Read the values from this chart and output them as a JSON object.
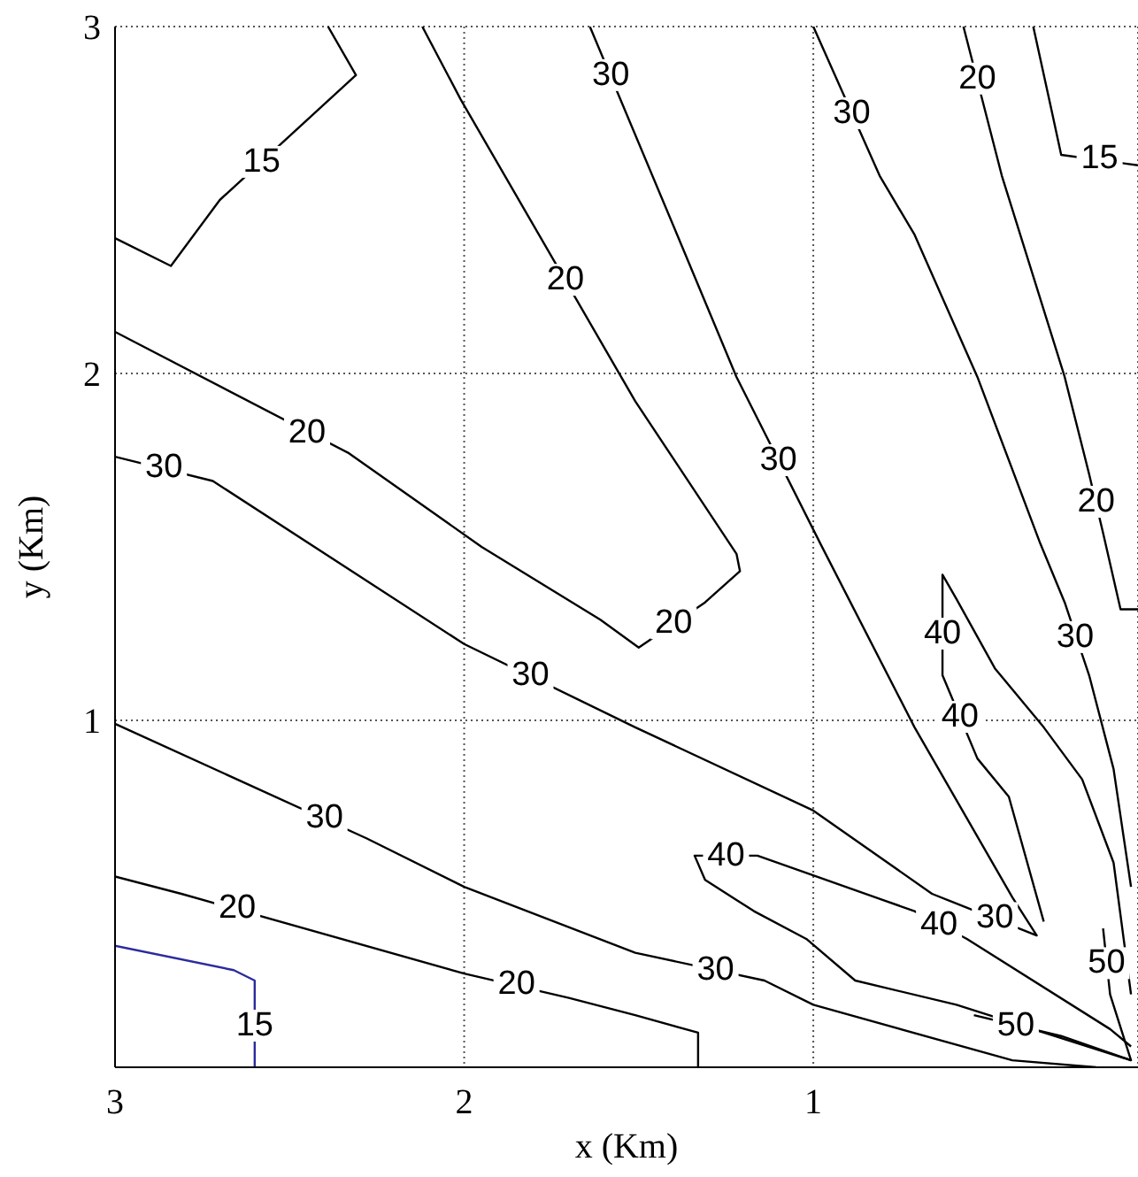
{
  "chart_data": {
    "type": "line",
    "xlabel": "x (Km)",
    "ylabel": "y (Km)",
    "xlim": [
      3,
      0.07
    ],
    "ylim": [
      0,
      3
    ],
    "xticks": [
      3,
      2,
      1
    ],
    "yticks": [
      1,
      2,
      3
    ],
    "grid": true,
    "marker": "none",
    "line_style": "solid",
    "series": [
      {
        "color": "#000000",
        "x": [
          2.39,
          2.31,
          2.7,
          2.84,
          3.0
        ],
        "values": [
          3.0,
          2.86,
          2.5,
          2.31,
          2.39
        ]
      },
      {
        "color": "#000000",
        "x": [
          3.0,
          2.33,
          1.95,
          1.61,
          1.5,
          1.31,
          1.21,
          1.22,
          1.51,
          2.01,
          2.12
        ],
        "values": [
          2.12,
          1.77,
          1.5,
          1.29,
          1.21,
          1.34,
          1.43,
          1.48,
          1.92,
          2.79,
          3.0
        ]
      },
      {
        "color": "#000000",
        "x": [
          3.0,
          2.72,
          2.0,
          1.51,
          1.0,
          0.66,
          0.36,
          0.43,
          0.71,
          0.98,
          1.22,
          1.39,
          1.64
        ],
        "values": [
          1.76,
          1.69,
          1.22,
          0.98,
          0.74,
          0.5,
          0.38,
          0.49,
          0.98,
          1.51,
          1.99,
          2.4,
          3.0
        ]
      },
      {
        "color": "#000000",
        "x": [
          3.0,
          2.28,
          2.0,
          1.51,
          1.14,
          1.0,
          0.43,
          0.19
        ],
        "values": [
          0.99,
          0.66,
          0.52,
          0.33,
          0.25,
          0.18,
          0.02,
          0.0
        ]
      },
      {
        "color": "#000000",
        "x": [
          3.0,
          2.81,
          2.0,
          1.7,
          1.51,
          1.33,
          1.33
        ],
        "values": [
          0.55,
          0.5,
          0.27,
          0.2,
          0.15,
          0.1,
          0.0
        ]
      },
      {
        "color": "#2b2b9e",
        "x": [
          3.0,
          2.66,
          2.6,
          2.6
        ],
        "values": [
          0.35,
          0.28,
          0.25,
          0.0
        ]
      },
      {
        "color": "#000000",
        "x": [
          0.09,
          0.59,
          0.88,
          1.02,
          1.17,
          1.31,
          1.34,
          1.16,
          1.02,
          0.71,
          0.56,
          0.15,
          0.09
        ],
        "values": [
          0.02,
          0.18,
          0.25,
          0.37,
          0.45,
          0.54,
          0.61,
          0.61,
          0.56,
          0.45,
          0.37,
          0.11,
          0.06
        ]
      },
      {
        "color": "#000000",
        "x": [
          0.17,
          0.15,
          0.09,
          0.29,
          0.54
        ],
        "values": [
          0.4,
          0.21,
          0.02,
          0.09,
          0.15
        ]
      },
      {
        "color": "#000000",
        "x": [
          0.57,
          0.46,
          0.28,
          0.21,
          0.17,
          0.12,
          0.07
        ],
        "values": [
          3.0,
          2.57,
          1.99,
          1.71,
          1.54,
          1.32,
          1.32
        ]
      },
      {
        "color": "#000000",
        "x": [
          0.37,
          0.32,
          0.29,
          0.07
        ],
        "values": [
          3.0,
          2.77,
          2.63,
          2.6
        ]
      },
      {
        "color": "#000000",
        "x": [
          1.0,
          0.81,
          0.71,
          0.53,
          0.35,
          0.28,
          0.21,
          0.14,
          0.09
        ],
        "values": [
          3.0,
          2.57,
          2.4,
          1.99,
          1.51,
          1.34,
          1.13,
          0.86,
          0.52
        ]
      },
      {
        "color": "#000000",
        "x": [
          0.34,
          0.44,
          0.53,
          0.63,
          0.63,
          0.59,
          0.48,
          0.34,
          0.23,
          0.14,
          0.09
        ],
        "values": [
          0.42,
          0.78,
          0.89,
          1.13,
          1.42,
          1.35,
          1.15,
          0.98,
          0.83,
          0.59,
          0.21
        ]
      }
    ],
    "annotations": [
      {
        "text": "15",
        "x": 2.58,
        "y": 2.61
      },
      {
        "text": "20",
        "x": 1.71,
        "y": 2.27
      },
      {
        "text": "20",
        "x": 2.45,
        "y": 1.83
      },
      {
        "text": "20",
        "x": 1.4,
        "y": 1.28
      },
      {
        "text": "30",
        "x": 1.58,
        "y": 2.86
      },
      {
        "text": "30",
        "x": 1.1,
        "y": 1.75
      },
      {
        "text": "30",
        "x": 2.86,
        "y": 1.73
      },
      {
        "text": "30",
        "x": 1.81,
        "y": 1.13
      },
      {
        "text": "30",
        "x": 0.48,
        "y": 0.43
      },
      {
        "text": "30",
        "x": 2.4,
        "y": 0.72
      },
      {
        "text": "30",
        "x": 1.28,
        "y": 0.28
      },
      {
        "text": "20",
        "x": 2.65,
        "y": 0.46
      },
      {
        "text": "20",
        "x": 1.85,
        "y": 0.24
      },
      {
        "text": "15",
        "x": 2.6,
        "y": 0.12
      },
      {
        "text": "40",
        "x": 1.25,
        "y": 0.61
      },
      {
        "text": "40",
        "x": 0.64,
        "y": 0.41
      },
      {
        "text": "50",
        "x": 0.42,
        "y": 0.12
      },
      {
        "text": "50",
        "x": 0.16,
        "y": 0.3
      },
      {
        "text": "20",
        "x": 0.53,
        "y": 2.85
      },
      {
        "text": "20",
        "x": 0.19,
        "y": 1.63
      },
      {
        "text": "15",
        "x": 0.18,
        "y": 2.62
      },
      {
        "text": "30",
        "x": 0.89,
        "y": 2.75
      },
      {
        "text": "30",
        "x": 0.25,
        "y": 1.24
      },
      {
        "text": "40",
        "x": 0.63,
        "y": 1.25
      },
      {
        "text": "40",
        "x": 0.58,
        "y": 1.01
      }
    ]
  }
}
